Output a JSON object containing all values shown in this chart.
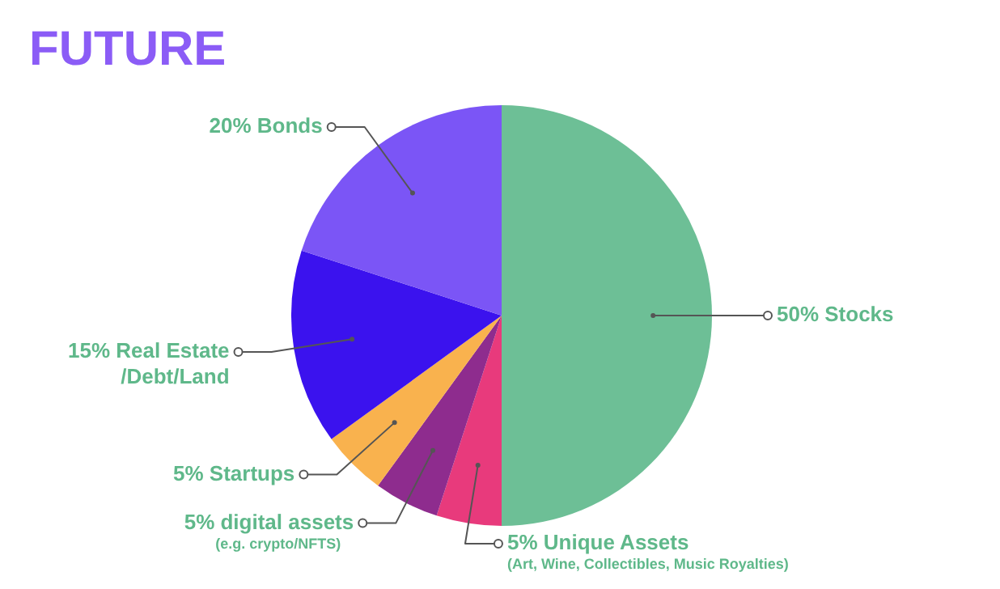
{
  "chart_data": {
    "type": "pie",
    "title": "FUTURE",
    "categories": [
      "Stocks",
      "Unique Assets\n(Art, Wine, Collectibles, Music Royalties)",
      "digital assets\n(e.g. crypto/NFTS)",
      "Startups",
      "Real Estate /Debt/Land",
      "Bonds"
    ],
    "values": [
      50,
      5,
      5,
      5,
      15,
      20
    ],
    "value_labels": [
      "50%",
      "5%",
      "5%",
      "5%",
      "15%",
      "20%"
    ],
    "colors": [
      "#6dbf96",
      "#e83a7c",
      "#8e2c8e",
      "#f9b24e",
      "#3b12ee",
      "#7b55f6"
    ]
  }
}
